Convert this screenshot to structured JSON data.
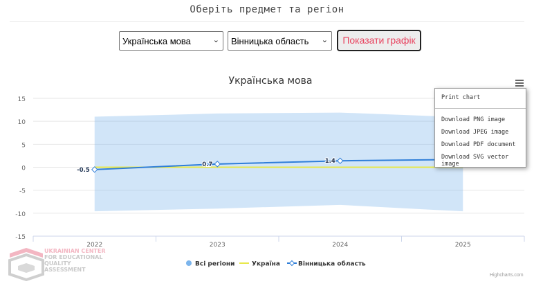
{
  "heading": "Оберіть предмет та регіон",
  "controls": {
    "subject_select": "Українська мова",
    "region_select": "Вінницька область",
    "show_button": "Показати графік"
  },
  "menu": {
    "print": "Print chart",
    "png": "Download PNG image",
    "jpeg": "Download JPEG image",
    "pdf": "Download PDF document",
    "svg": "Download SVG vector image"
  },
  "logo": {
    "line1": "UKRAINIAN CENTER",
    "line2": "FOR EDUCATIONAL",
    "line3": "QUALITY",
    "line4": "ASSESSMENT"
  },
  "credits": "Highcharts.com",
  "icons": {
    "menu": "hamburger-menu-icon",
    "chevron": "chevron-down-icon",
    "logo": "ucequa-logo-icon"
  },
  "chart_data": {
    "type": "line",
    "title": "Українська мова",
    "categories": [
      "2022",
      "2023",
      "2024",
      "2025"
    ],
    "ylim": [
      -15,
      15
    ],
    "yticks": [
      15,
      10,
      5,
      0,
      -5,
      -10,
      -15
    ],
    "grid": true,
    "legend_position": "bottom",
    "series": [
      {
        "name": "Всі регіони",
        "type": "arearange",
        "color": "#7cb5ec",
        "ranges": [
          [
            -9.6,
            11.0
          ],
          [
            -9.0,
            11.7
          ],
          [
            -8.2,
            11.9
          ],
          [
            -9.6,
            10.9
          ]
        ]
      },
      {
        "name": "Україна",
        "type": "line",
        "color": "#e8e84a",
        "values": [
          0,
          0,
          0,
          0
        ]
      },
      {
        "name": "Вінницька область",
        "type": "line",
        "color": "#2f7ed8",
        "values": [
          -0.5,
          0.7,
          1.4,
          1.7
        ],
        "data_labels": [
          "-0.5",
          "0.7",
          "1.4",
          ""
        ]
      }
    ]
  }
}
